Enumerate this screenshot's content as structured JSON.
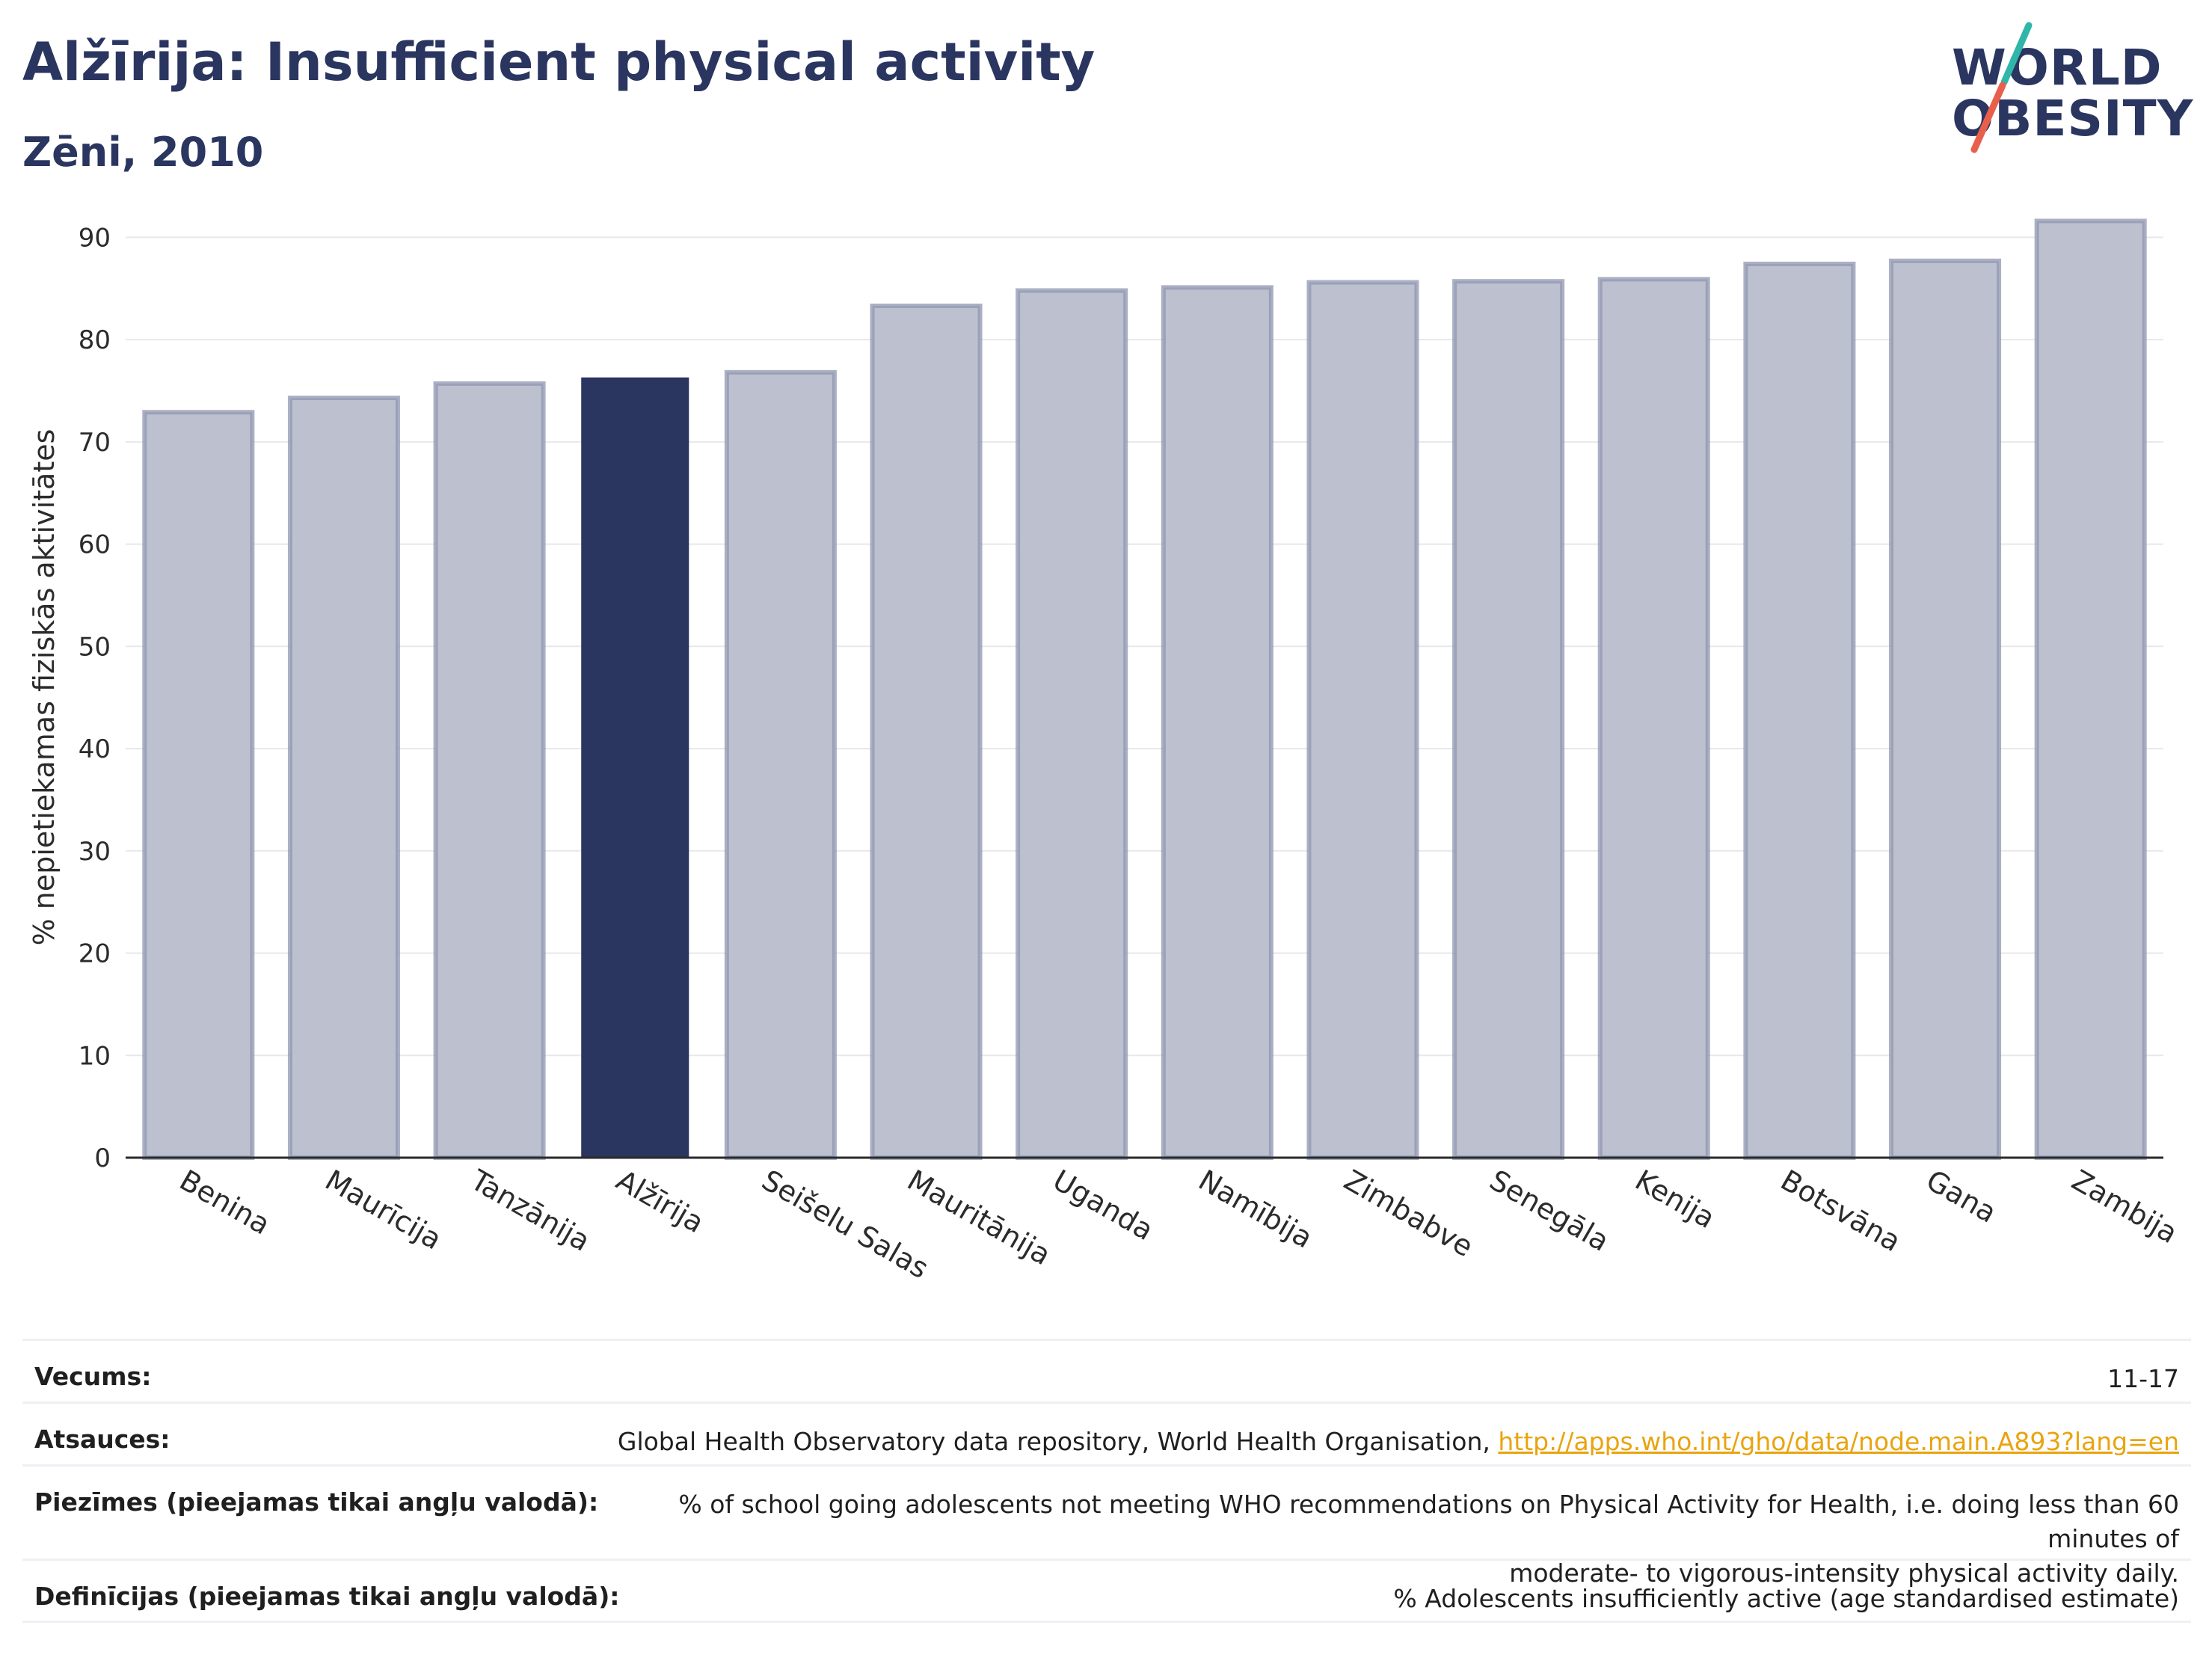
{
  "header": {
    "title": "Alžīrija: Insufficient physical activity",
    "subtitle": "Zēni, 2010"
  },
  "logo": {
    "line1": "WORLD",
    "line2": "OBESITY",
    "slash_colors": [
      "#2fb6a9",
      "#e8604c"
    ]
  },
  "colors": {
    "highlight_bar": "#2a3560",
    "other_bar_fill": "#bdc1cf",
    "other_bar_stroke": "#8f96b0",
    "grid": "#e8e8ec",
    "axis": "#2a2a2a"
  },
  "chart_data": {
    "type": "bar",
    "title": "Alžīrija: Insufficient physical activity",
    "subtitle": "Zēni, 2010",
    "xlabel": "",
    "ylabel": "% nepietiekamas fiziskās aktivitātes",
    "ylim": [
      0,
      92
    ],
    "yticks": [
      0,
      10,
      20,
      30,
      40,
      50,
      60,
      70,
      80,
      90
    ],
    "grid": true,
    "categories": [
      "Benina",
      "Maurīcija",
      "Tanzānija",
      "Alžīrija",
      "Seišelu Salas",
      "Mauritānija",
      "Uganda",
      "Namībija",
      "Zimbabve",
      "Senegāla",
      "Kenija",
      "Botsvāna",
      "Gana",
      "Zambija"
    ],
    "values": [
      72.9,
      74.3,
      75.7,
      76.3,
      76.8,
      83.3,
      84.8,
      85.1,
      85.6,
      85.7,
      85.9,
      87.4,
      87.7,
      91.6
    ],
    "highlight": "Alžīrija"
  },
  "meta": {
    "rows": [
      {
        "label": "Vecums:",
        "value": "11-17"
      },
      {
        "label": "Atsauces:",
        "value": "Global Health Observatory data repository, World Health Organisation, ",
        "link": "http://apps.who.int/gho/data/node.main.A893?lang=en"
      },
      {
        "label": "Piezīmes (pieejamas tikai angļu valodā):",
        "value": "% of school going adolescents not meeting WHO recommendations on Physical Activity for Health, i.e. doing less than 60 minutes of",
        "value2": "moderate- to vigorous-intensity physical activity daily."
      },
      {
        "label": "Definīcijas (pieejamas tikai angļu valodā):",
        "value": "% Adolescents insufficiently active (age standardised estimate)"
      }
    ]
  }
}
